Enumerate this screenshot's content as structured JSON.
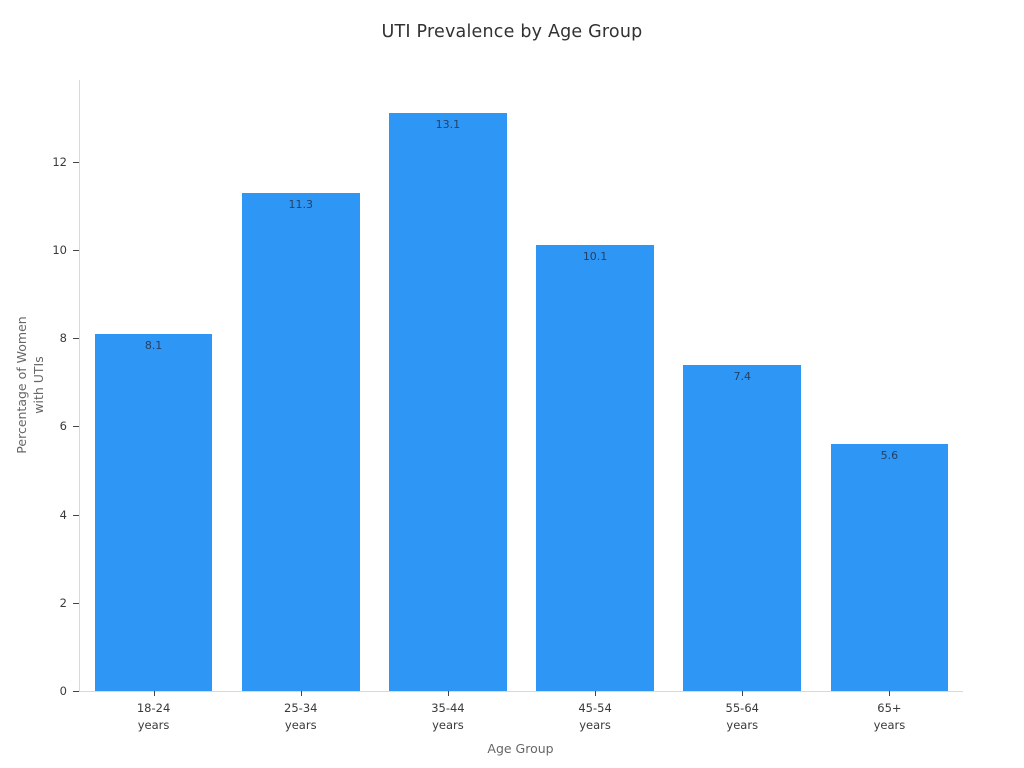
{
  "chart_data": {
    "type": "bar",
    "title": "UTI Prevalence by Age Group",
    "categories": [
      "18-24 years",
      "25-34 years",
      "35-44 years",
      "45-54 years",
      "55-64 years",
      "65+ years"
    ],
    "values": [
      8.1,
      11.3,
      13.1,
      10.1,
      7.4,
      5.6
    ],
    "xlabel": "Age Group",
    "ylabel": "Percentage of Women with UTIs",
    "ylabel_lines": [
      "Percentage of Women",
      "with UTIs"
    ],
    "ylim": [
      0,
      13.85
    ],
    "yticks": [
      0,
      2,
      4,
      6,
      8,
      10,
      12
    ],
    "bar_color": "#2e96f5",
    "value_label_color": "#2a3f5f",
    "spine_color": "#d9d9d9",
    "grid": false,
    "legend": "none",
    "bar_width_fraction": 0.8
  }
}
